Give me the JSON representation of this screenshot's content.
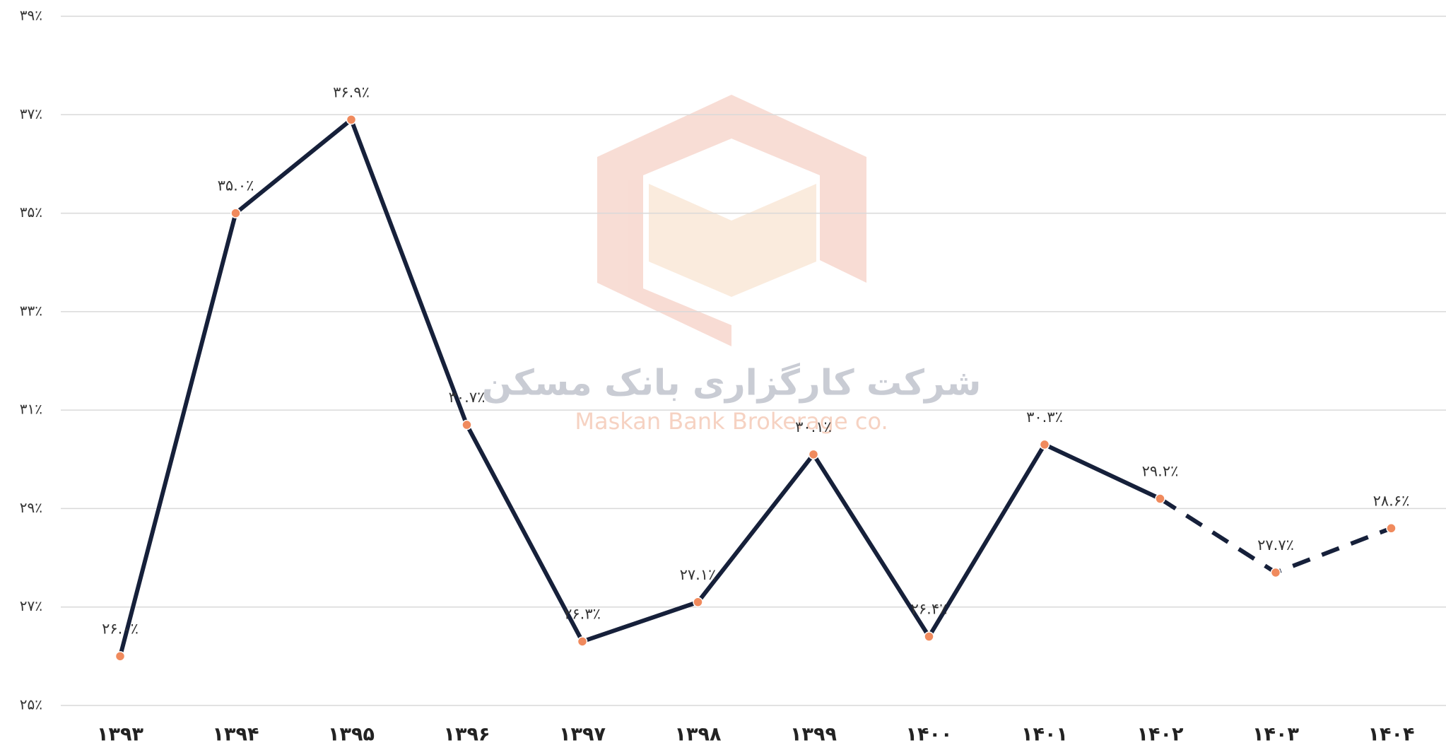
{
  "chart_data": {
    "type": "line",
    "watermark": {
      "title": "شرکت کارگزاری بانک مسکن",
      "subtitle": "Maskan Bank Brokerage co."
    },
    "categories": [
      "۱۳۹۳",
      "۱۳۹۴",
      "۱۳۹۵",
      "۱۳۹۶",
      "۱۳۹۷",
      "۱۳۹۸",
      "۱۳۹۹",
      "۱۴۰۰",
      "۱۴۰۱",
      "۱۴۰۲",
      "۱۴۰۳",
      "۱۴۰۴"
    ],
    "values": [
      26.0,
      35.0,
      36.9,
      30.7,
      26.3,
      27.1,
      30.1,
      26.4,
      30.3,
      29.2,
      27.7,
      28.6
    ],
    "value_labels": [
      "۲۶.۰٪",
      "۳۵.۰٪",
      "۳۶.۹٪",
      "۳۰.۷٪",
      "۲۶.۳٪",
      "۲۷.۱٪",
      "۳۰.۱٪",
      "۲۶.۴٪",
      "۳۰.۳٪",
      "۲۹.۲٪",
      "۲۷.۷٪",
      "۲۸.۶٪"
    ],
    "dashed_from": "۱۴۰۲",
    "color": "#16203a",
    "marker_color": "#f08a5d",
    "ylim": [
      25,
      39
    ],
    "yticks": [
      {
        "value": 25,
        "label": "۲۵٪"
      },
      {
        "value": 27,
        "label": "۲۷٪"
      },
      {
        "value": 29,
        "label": "۲۹٪"
      },
      {
        "value": 31,
        "label": "۳۱٪"
      },
      {
        "value": 33,
        "label": "۳۳٪"
      },
      {
        "value": 35,
        "label": "۳۵٪"
      },
      {
        "value": 37,
        "label": "۳۷٪"
      },
      {
        "value": 39,
        "label": "۳۹٪"
      }
    ],
    "grid": true
  }
}
